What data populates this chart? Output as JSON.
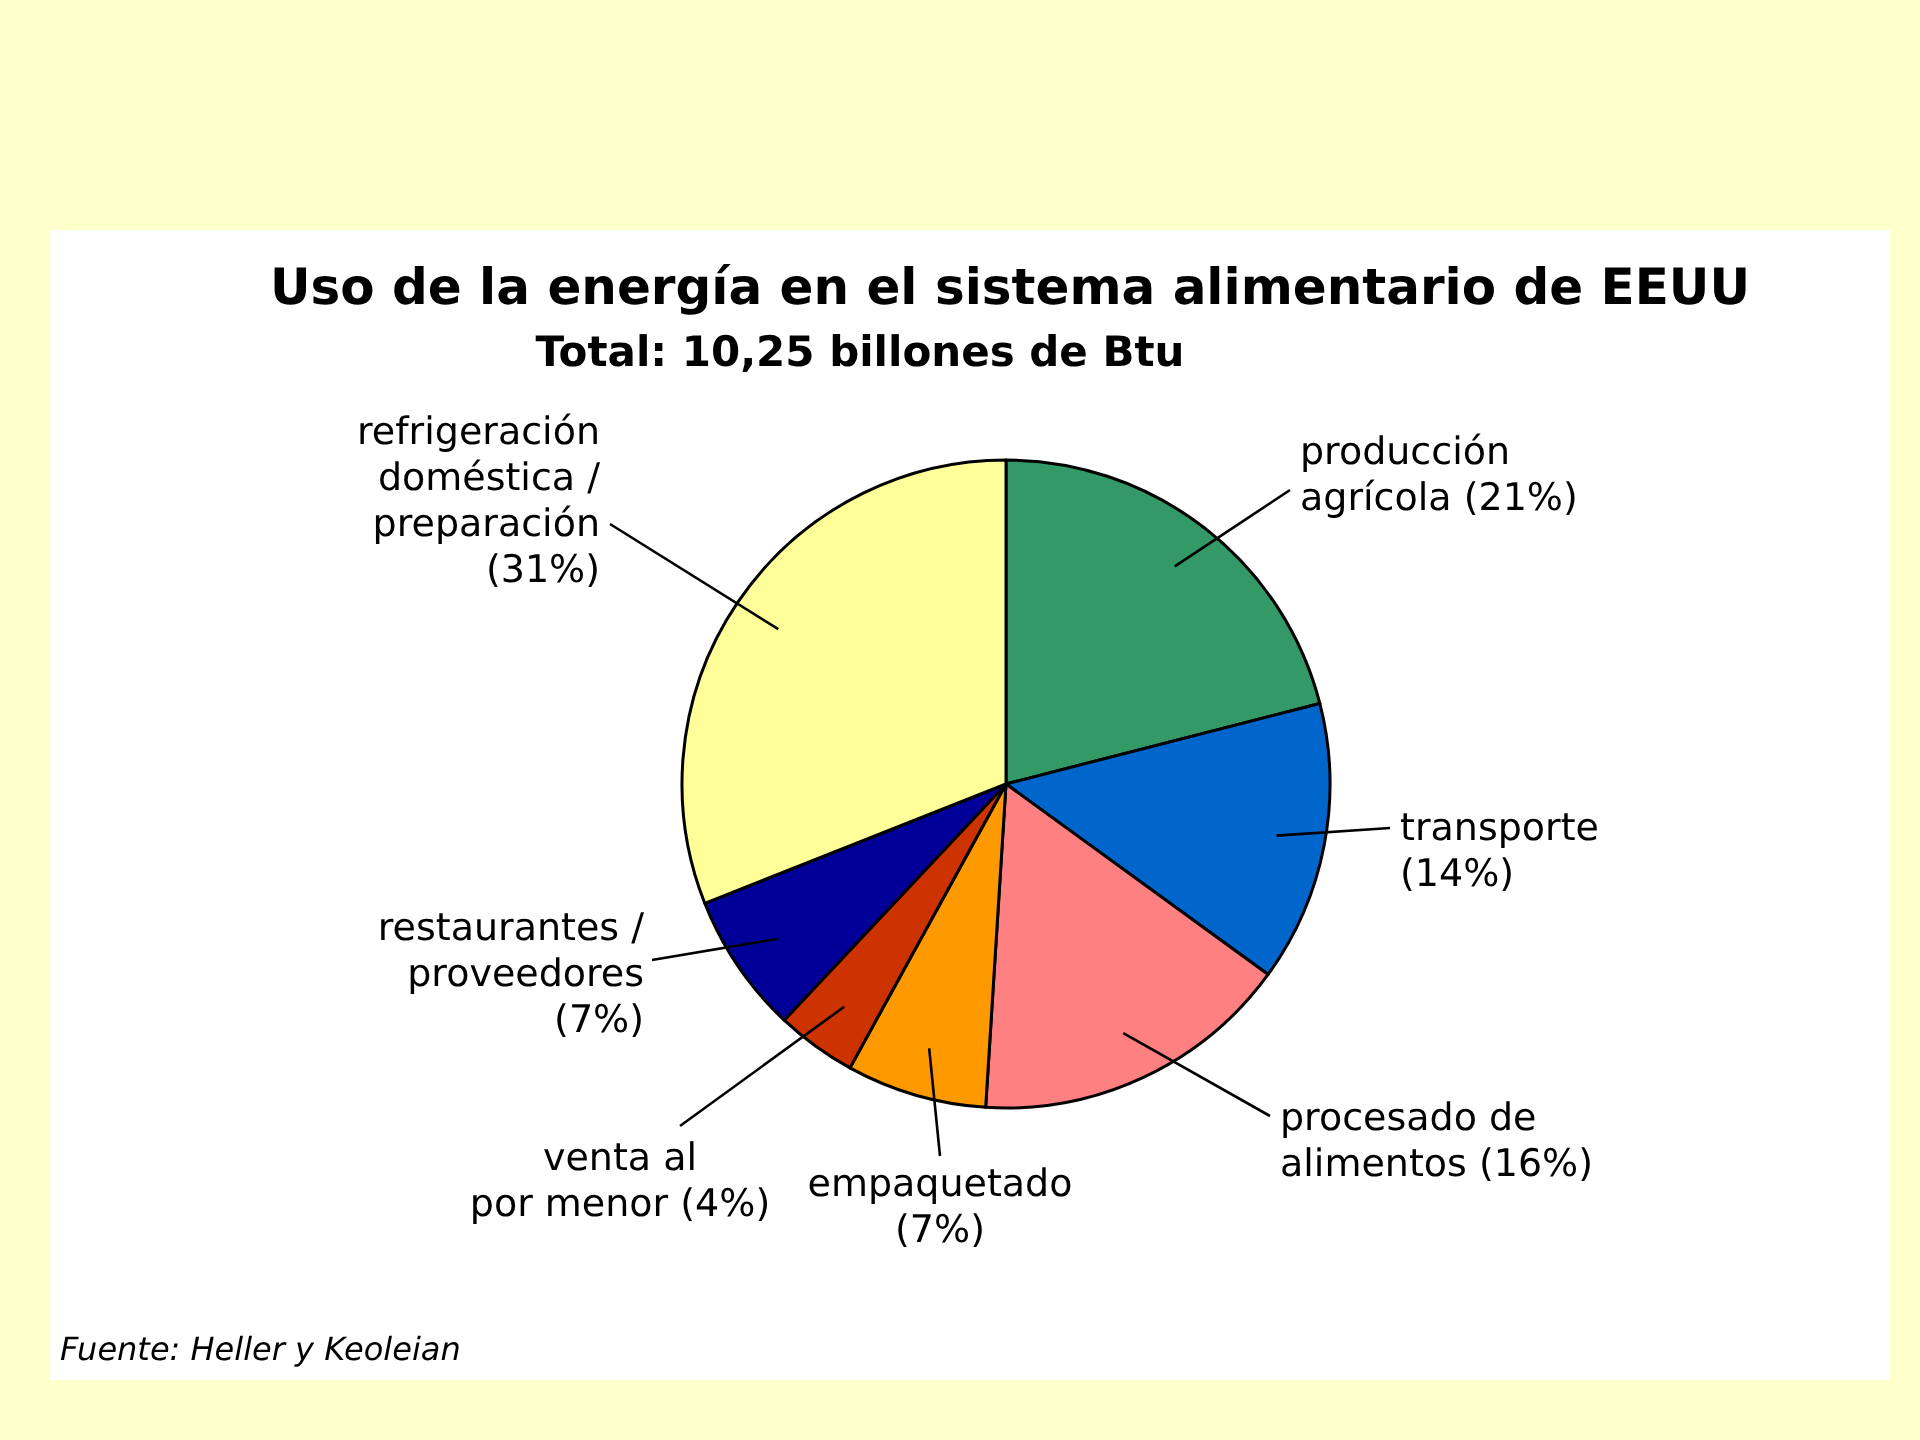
{
  "chart_data": {
    "type": "pie",
    "title": "Uso de la energía en el sistema alimentario de EEUU",
    "subtitle": "Total: 10,25 billones de Btu",
    "categories": [
      "producción\nagrícola",
      "transporte",
      "procesado de\nalimentos",
      "empaquetado",
      "venta al\npor menor",
      "restaurantes /\nproveedores",
      "refrigeración\ndoméstica /\npreparación"
    ],
    "values": [
      21,
      14,
      16,
      7,
      4,
      7,
      31
    ],
    "colors": [
      "#339966",
      "#0066cc",
      "#ff8080",
      "#ff9900",
      "#cc3300",
      "#000099",
      "#ffff99"
    ],
    "value_labels": [
      "(21%)",
      "(14%)",
      "(16%)",
      "(7%)",
      "(4%)",
      "(7%)",
      "(31%)"
    ],
    "annotations": [
      "Fuente: Heller y Keoleian"
    ]
  }
}
